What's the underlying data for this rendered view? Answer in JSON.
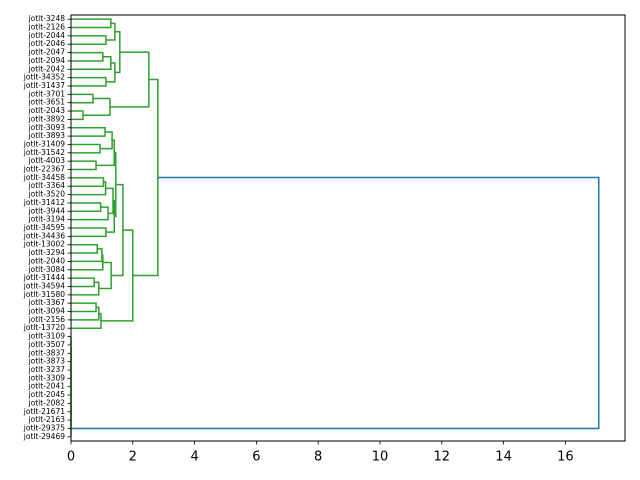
{
  "chart_data": {
    "type": "dendrogram",
    "leaves": [
      "jotlt-3248",
      "jotlt-2126",
      "jotlt-2044",
      "jotlt-2046",
      "jotlt-2047",
      "jotlt-2094",
      "jotlt-2042",
      "jotlt-34352",
      "jotlt-31437",
      "jotlt-3701",
      "jotlt-3651",
      "jotlt-2043",
      "jotlt-3892",
      "jotlt-3093",
      "jotlt-3893",
      "jotlt-31409",
      "jotlt-31542",
      "jotlt-4003",
      "jotlt-22367",
      "jotlt-34458",
      "jotlt-3364",
      "jotlt-3520",
      "jotlt-31412",
      "jotlt-3944",
      "jotlt-3194",
      "jotlt-34595",
      "jotlt-34436",
      "jotlt-13002",
      "jotlt-3294",
      "jotlt-2040",
      "jotlt-3084",
      "jotlt-31444",
      "jotlt-34594",
      "jotlt-31580",
      "jotlt-3367",
      "jotlt-3094",
      "jotlt-2156",
      "jotlt-13720",
      "jotlt-3109",
      "jotlt-3507",
      "jotlt-3837",
      "jotlt-3873",
      "jotlt-3237",
      "jotlt-3309",
      "jotlt-2041",
      "jotlt-2045",
      "jotlt-2082",
      "jotlt-21671",
      "jotlt-2163",
      "jotlt-29375",
      "jotlt-29469"
    ],
    "merges": [
      [
        0,
        1,
        1.29
      ],
      [
        2,
        3,
        1.13
      ],
      [
        51,
        52,
        1.42
      ],
      [
        4,
        5,
        1.03
      ],
      [
        54,
        6,
        1.29
      ],
      [
        7,
        8,
        1.13
      ],
      [
        55,
        56,
        1.42
      ],
      [
        53,
        57,
        1.58
      ],
      [
        9,
        10,
        0.71
      ],
      [
        11,
        12,
        0.39
      ],
      [
        59,
        60,
        1.26
      ],
      [
        58,
        61,
        2.52
      ],
      [
        13,
        14,
        1.1
      ],
      [
        15,
        16,
        0.94
      ],
      [
        63,
        64,
        1.33
      ],
      [
        17,
        18,
        0.81
      ],
      [
        65,
        66,
        1.4
      ],
      [
        19,
        20,
        1.05
      ],
      [
        68,
        21,
        1.12
      ],
      [
        22,
        23,
        0.96
      ],
      [
        70,
        24,
        1.2
      ],
      [
        69,
        71,
        1.36
      ],
      [
        25,
        26,
        1.13
      ],
      [
        72,
        73,
        1.4
      ],
      [
        67,
        74,
        1.45
      ],
      [
        27,
        28,
        0.85
      ],
      [
        76,
        29,
        1.0
      ],
      [
        77,
        30,
        1.03
      ],
      [
        31,
        32,
        0.75
      ],
      [
        79,
        33,
        0.9
      ],
      [
        78,
        80,
        1.3
      ],
      [
        75,
        81,
        1.68
      ],
      [
        34,
        35,
        0.81
      ],
      [
        83,
        36,
        0.9
      ],
      [
        84,
        37,
        0.97
      ],
      [
        82,
        85,
        2.0
      ],
      [
        62,
        86,
        2.81
      ],
      [
        38,
        39,
        0
      ],
      [
        88,
        40,
        0
      ],
      [
        89,
        41,
        0
      ],
      [
        90,
        42,
        0
      ],
      [
        91,
        43,
        0
      ],
      [
        92,
        44,
        0
      ],
      [
        93,
        45,
        0
      ],
      [
        94,
        46,
        0
      ],
      [
        95,
        47,
        0
      ],
      [
        96,
        48,
        0
      ],
      [
        97,
        49,
        0
      ],
      [
        98,
        50,
        0
      ],
      [
        87,
        99,
        17.08
      ]
    ],
    "color": "#2ca02c",
    "root_color": "#1f77b4",
    "xlim": [
      0,
      17.93
    ],
    "xticks": [
      0,
      2,
      4,
      6,
      8,
      10,
      12,
      14,
      16
    ]
  }
}
